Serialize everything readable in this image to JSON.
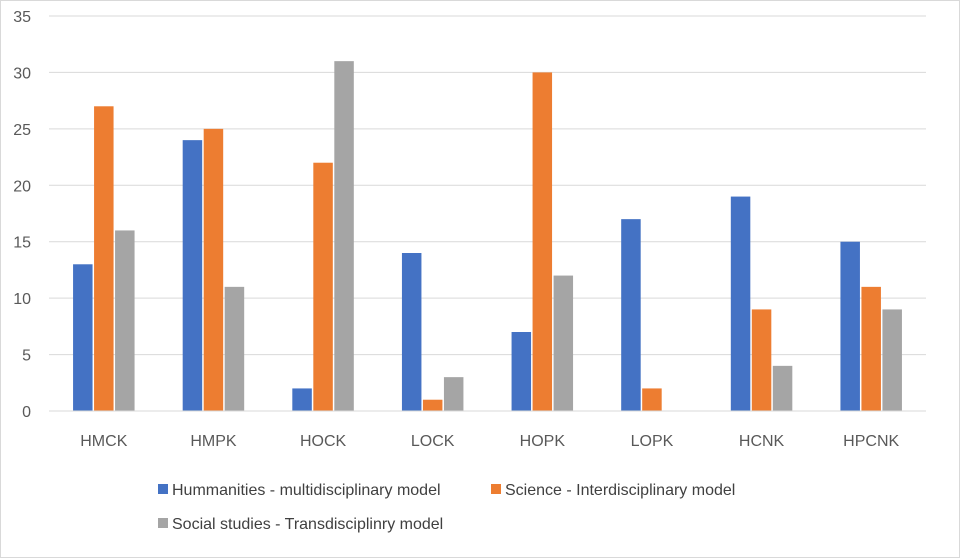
{
  "chart_data": {
    "type": "bar",
    "title": "",
    "xlabel": "",
    "ylabel": "",
    "categories": [
      "HMCK",
      "HMPK",
      "HOCK",
      "LOCK",
      "HOPK",
      "LOPK",
      "HCNK",
      "HPCNK"
    ],
    "series": [
      {
        "name": "Hummanities - multidisciplinary model",
        "color": "#4472c4",
        "values": [
          13,
          24,
          2,
          14,
          7,
          17,
          19,
          15
        ]
      },
      {
        "name": "Science - Interdisciplinary model",
        "color": "#ed7d31",
        "values": [
          27,
          25,
          22,
          1,
          30,
          2,
          9,
          11
        ]
      },
      {
        "name": "Social studies - Transdisciplinry model",
        "color": "#a5a5a5",
        "values": [
          16,
          11,
          31,
          3,
          12,
          0,
          4,
          9
        ]
      }
    ],
    "ylim": [
      0,
      35
    ],
    "yticks": [
      0,
      5,
      10,
      15,
      20,
      25,
      30,
      35
    ],
    "grid": true,
    "legend": "bottom"
  }
}
